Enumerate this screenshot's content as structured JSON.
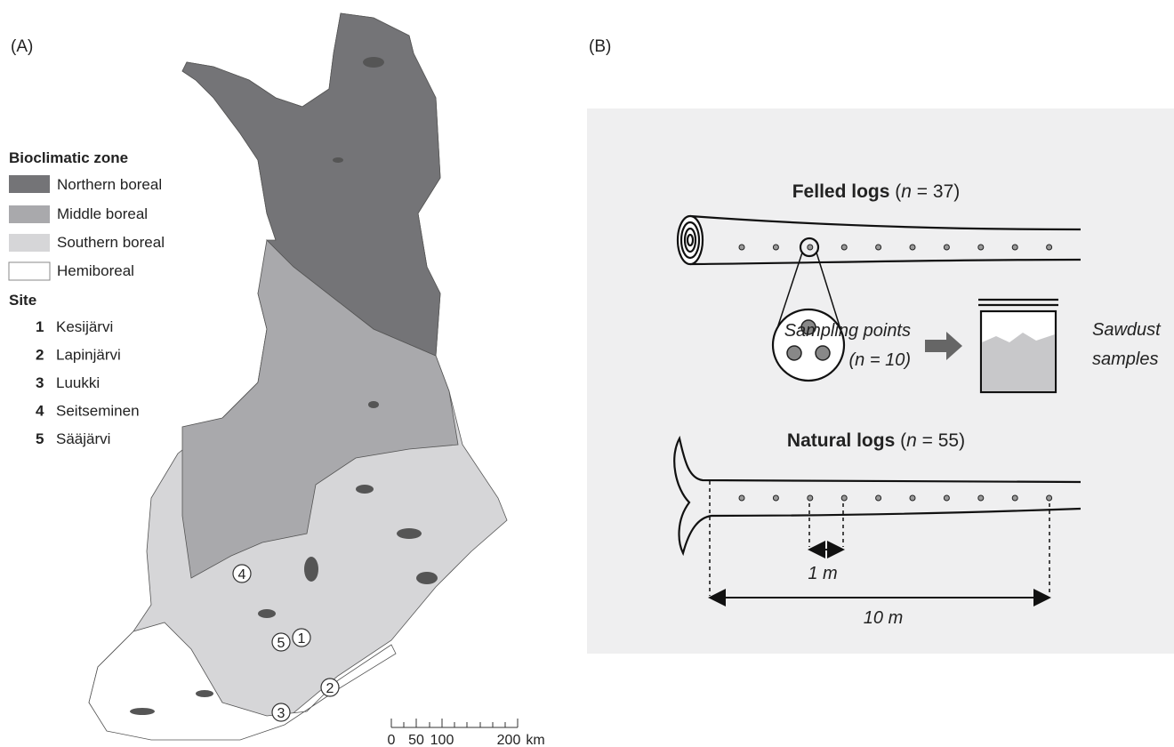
{
  "panel_a": {
    "label": "(A)",
    "legend": {
      "title": "Bioclimatic zone",
      "zones": [
        "Northern boreal",
        "Middle boreal",
        "Southern boreal",
        "Hemiboreal"
      ]
    },
    "site_title": "Site",
    "sites": [
      {
        "number": "1",
        "name": "Kesijärvi"
      },
      {
        "number": "2",
        "name": "Lapinjärvi"
      },
      {
        "number": "3",
        "name": "Luukki"
      },
      {
        "number": "4",
        "name": "Seitseminen"
      },
      {
        "number": "5",
        "name": "Sääjärvi"
      }
    ],
    "scale_bar": {
      "labels": [
        "0",
        "50",
        "100",
        "200"
      ],
      "unit": "km"
    }
  },
  "panel_b": {
    "label": "(B)",
    "felled_logs": {
      "title": "Felled logs",
      "count_parts": [
        "(",
        "n",
        " = 37)"
      ]
    },
    "sampling_points": {
      "line1": "Sampling points",
      "line2": "(n = 10)"
    },
    "sawdust": {
      "line1": "Sawdust",
      "line2": "samples"
    },
    "natural_logs": {
      "title": "Natural logs",
      "count_parts": [
        "(",
        "n",
        " = 55)"
      ]
    },
    "spacing_label": "1 m",
    "length_label": "10 m"
  }
}
